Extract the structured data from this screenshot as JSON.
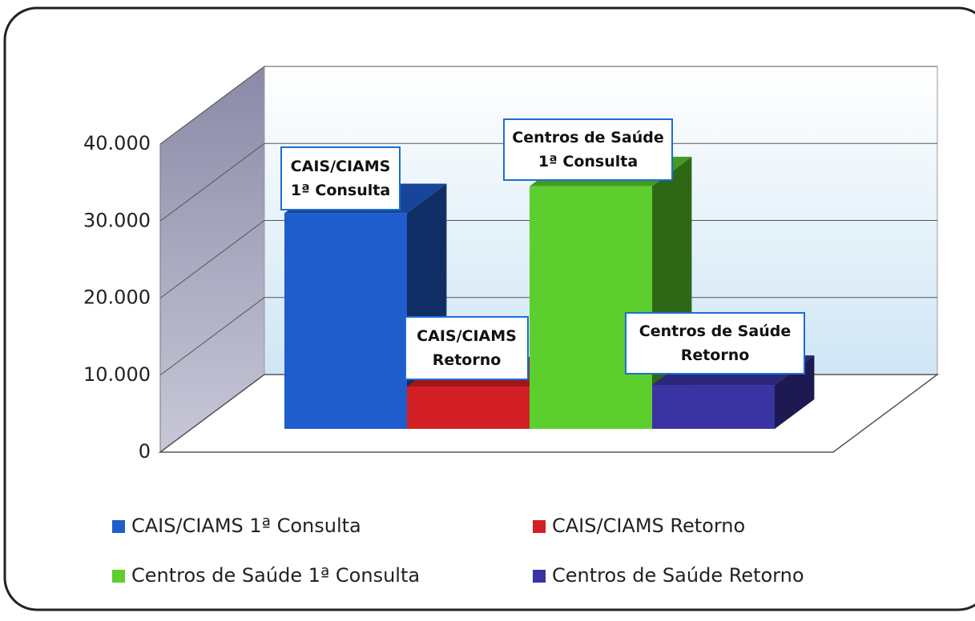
{
  "chart_data": {
    "type": "bar3d",
    "series": [
      {
        "name": "CAIS/CIAMS 1ª Consulta",
        "color": "#1f5ccc",
        "values": [
          28000
        ]
      },
      {
        "name": "CAIS/CIAMS Retorno",
        "color": "#d21f24",
        "values": [
          5500
        ]
      },
      {
        "name": "Centros de Saúde 1ª Consulta",
        "color": "#5ccf2e",
        "values": [
          31500
        ]
      },
      {
        "name": "Centros de Saúde Retorno",
        "color": "#3a33a2",
        "values": [
          5700
        ]
      }
    ],
    "ylim": [
      0,
      40000
    ],
    "yticks": [
      0,
      {
        "value": 10000,
        "label": "10.000"
      },
      {
        "value": 20000,
        "label": "20.000"
      },
      {
        "value": 30000,
        "label": "30.000"
      },
      {
        "value": 40000,
        "label": "40.000"
      }
    ],
    "grid": true,
    "legend": "bottom"
  }
}
